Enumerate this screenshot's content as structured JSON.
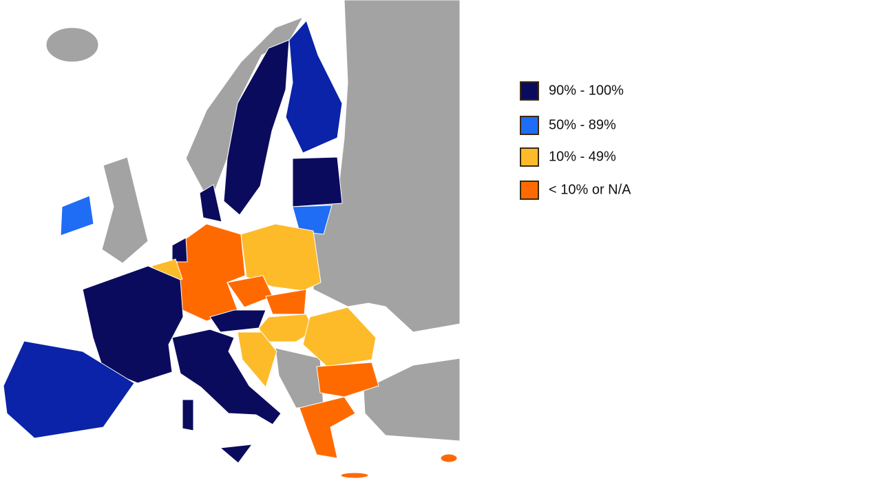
{
  "legend": {
    "items": [
      {
        "label": "90% - 100%",
        "color": "#0b0b5e"
      },
      {
        "label": "50% - 89%",
        "color": "#1f6cf5"
      },
      {
        "label": "10% - 49%",
        "color": "#fdbb2a"
      },
      {
        "label": "< 10% or N/A",
        "color": "#ff6a00"
      }
    ]
  }
}
